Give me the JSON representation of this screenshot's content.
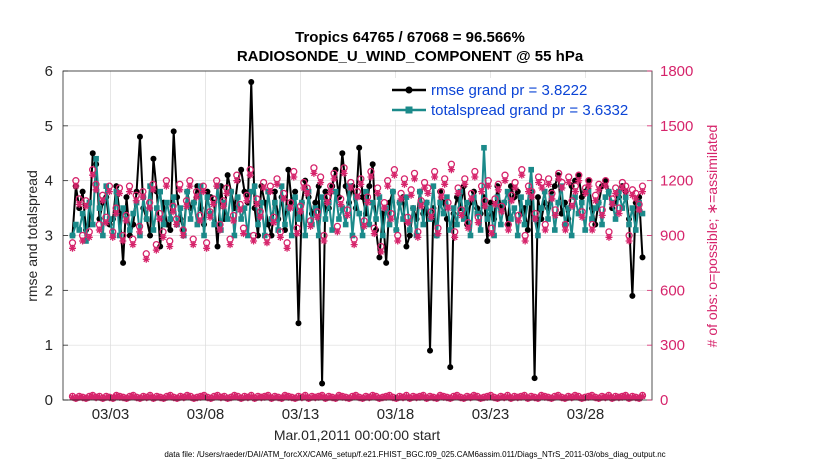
{
  "chart_data": {
    "type": "line",
    "title_line1": "Tropics 64765 / 67068 = 96.566%",
    "title_line2": "RADIOSONDE_U_WIND_COMPONENT @ 55 hPa",
    "xlabel": "Mar.01,2011 00:00:00 start",
    "ylabel_left": "rmse and totalspread",
    "ylabel_right": "# of obs: o=possible; ∗=assimilated",
    "footer": "data file: /Users/raeder/DAI/ATM_forcXX/CAM6_setup/f.e21.FHIST_BGC.f09_025.CAM6assim.011/Diags_NTrS_2011-03/obs_diag_output.nc",
    "xlim": [
      0.5,
      31.5
    ],
    "ylim_left": [
      0,
      6
    ],
    "ylim_right": [
      0,
      1800
    ],
    "x_ticks": [
      3,
      8,
      13,
      18,
      23,
      28
    ],
    "x_tick_labels": [
      "03/03",
      "03/08",
      "03/13",
      "03/18",
      "03/23",
      "03/28"
    ],
    "y_ticks_left": [
      0,
      1,
      2,
      3,
      4,
      5,
      6
    ],
    "y_tick_labels_left": [
      "0",
      "1",
      "2",
      "3",
      "4",
      "5",
      "6"
    ],
    "y_ticks_right": [
      0,
      300,
      600,
      900,
      1200,
      1500,
      1800
    ],
    "y_tick_labels_right": [
      "0",
      "300",
      "600",
      "900",
      "1200",
      "1500",
      "1800"
    ],
    "legend": [
      {
        "label": "rmse grand pr = 3.8222",
        "color": "#000000"
      },
      {
        "label": "totalspread grand pr = 3.6332",
        "color": "#1b8a8a"
      }
    ],
    "series": [
      {
        "name": "rmse",
        "color": "#000000",
        "axis": "left",
        "marker": "circle",
        "values": [
          3.0,
          3.9,
          3.5,
          3.8,
          3.1,
          3.2,
          4.5,
          4.3,
          3.3,
          3.6,
          3.7,
          3.2,
          3.3,
          3.9,
          3.4,
          2.5,
          3.7,
          3.0,
          3.2,
          3.8,
          4.8,
          3.5,
          3.3,
          3.0,
          4.4,
          3.8,
          2.8,
          3.6,
          3.2,
          3.1,
          4.9,
          3.7,
          3.3,
          3.1,
          3.8,
          3.5,
          3.6,
          3.9,
          3.5,
          3.2,
          3.8,
          3.7,
          3.6,
          2.8,
          3.9,
          3.3,
          4.1,
          3.8,
          3.5,
          4.0,
          4.2,
          3.8,
          3.6,
          5.8,
          3.5,
          3.0,
          3.9,
          3.6,
          3.2,
          3.0,
          3.8,
          3.3,
          3.7,
          3.1,
          4.2,
          3.6,
          3.8,
          1.4,
          3.6,
          4.0,
          3.7,
          3.4,
          3.6,
          3.9,
          0.3,
          3.8,
          3.5,
          3.9,
          4.2,
          3.7,
          4.5,
          3.9,
          3.6,
          3.9,
          3.5,
          4.6,
          3.7,
          3.4,
          3.9,
          4.3,
          3.1,
          2.6,
          3.4,
          2.5,
          3.6,
          3.8,
          3.1,
          3.6,
          3.7,
          2.8,
          3.0,
          3.5,
          3.3,
          3.8,
          3.4,
          3.6,
          0.9,
          3.5,
          3.0,
          3.8,
          3.6,
          3.3,
          0.6,
          3.4,
          3.7,
          3.5,
          3.9,
          3.2,
          3.6,
          3.8,
          3.5,
          3.4,
          3.7,
          2.9,
          3.6,
          3.3,
          3.9,
          3.5,
          3.6,
          3.2,
          3.9,
          3.7,
          3.8,
          3.4,
          3.5,
          3.1,
          3.8,
          0.4,
          3.7,
          3.3,
          3.6,
          3.5,
          3.8,
          3.9,
          4.1,
          3.4,
          3.6,
          3.3,
          3.9,
          4.0,
          4.1,
          3.7,
          3.8,
          4.0,
          3.5,
          3.2,
          3.6,
          3.9,
          4.0,
          3.8,
          3.5,
          3.6,
          3.7,
          3.9,
          3.8,
          3.3,
          1.9,
          3.6,
          3.7,
          2.6
        ]
      },
      {
        "name": "totalspread",
        "color": "#1b8a8a",
        "axis": "left",
        "marker": "square",
        "values": [
          3.0,
          3.2,
          3.1,
          3.4,
          2.9,
          3.6,
          3.2,
          4.4,
          3.5,
          3.0,
          3.9,
          3.3,
          3.0,
          3.8,
          3.0,
          3.5,
          3.3,
          3.1,
          3.4,
          3.6,
          3.0,
          3.7,
          3.3,
          3.9,
          3.1,
          3.5,
          3.8,
          3.2,
          3.6,
          3.3,
          3.7,
          3.2,
          3.5,
          3.0,
          3.8,
          3.3,
          3.6,
          3.2,
          3.9,
          3.0,
          3.7,
          3.4,
          3.2,
          3.9,
          3.1,
          3.6,
          3.3,
          3.8,
          3.0,
          3.7,
          3.3,
          3.5,
          3.0,
          3.8,
          3.9,
          3.2,
          3.6,
          3.0,
          3.8,
          3.3,
          3.6,
          3.1,
          3.9,
          3.2,
          3.5,
          3.0,
          3.7,
          3.3,
          3.6,
          3.0,
          3.8,
          3.2,
          3.5,
          3.0,
          3.7,
          3.3,
          3.6,
          3.1,
          3.8,
          3.3,
          3.5,
          3.2,
          3.9,
          3.0,
          3.7,
          3.4,
          3.0,
          3.8,
          3.2,
          3.6,
          3.3,
          3.7,
          3.0,
          3.5,
          3.2,
          3.8,
          3.1,
          3.6,
          3.3,
          3.7,
          3.1,
          3.5,
          3.0,
          3.8,
          3.2,
          3.6,
          3.3,
          3.9,
          3.0,
          3.6,
          3.4,
          3.7,
          3.1,
          3.5,
          3.2,
          3.8,
          3.3,
          3.6,
          3.0,
          3.7,
          3.4,
          3.1,
          4.6,
          3.3,
          3.5,
          3.0,
          3.7,
          3.2,
          3.6,
          3.8,
          3.3,
          3.5,
          3.0,
          3.7,
          3.2,
          3.6,
          4.2,
          3.3,
          3.0,
          3.5,
          3.8,
          3.3,
          3.7,
          3.1,
          3.6,
          3.9,
          3.2,
          3.5,
          3.0,
          3.7,
          3.4,
          3.6,
          3.1,
          3.8,
          3.3,
          3.5,
          3.6,
          3.2,
          3.7,
          3.8,
          3.6,
          3.3,
          3.8,
          3.5,
          3.7,
          3.2,
          3.5,
          3.1,
          3.6,
          3.4
        ]
      },
      {
        "name": "possible",
        "color": "#d6246b",
        "axis": "right",
        "marker": "o",
        "values": [
          860,
          1200,
          1100,
          900,
          1090,
          920,
          1260,
          1180,
          960,
          1120,
          1000,
          1170,
          920,
          1050,
          1160,
          900,
          1010,
          1170,
          880,
          1120,
          950,
          1140,
          800,
          1080,
          1180,
          850,
          1020,
          920,
          1200,
          870,
          1060,
          990,
          1180,
          930,
          1090,
          1200,
          880,
          1140,
          1010,
          1170,
          860,
          1030,
          1100,
          1200,
          960,
          1090,
          1160,
          880,
          1010,
          1230,
          1070,
          940,
          1120,
          1260,
          900,
          1100,
          1030,
          1190,
          890,
          1170,
          1000,
          1210,
          920,
          1130,
          860,
          1080,
          1250,
          940,
          1060,
          1190,
          1160,
          980,
          1270,
          1030,
          1220,
          900,
          1110,
          1170,
          1240,
          950,
          1100,
          1270,
          1040,
          1190,
          880,
          1140,
          1210,
          980,
          1110,
          1250,
          940,
          1160,
          840,
          1080,
          1200,
          1020,
          1260,
          900,
          1130,
          1210,
          1000,
          1150,
          1240,
          920,
          1090,
          1190,
          1160,
          1030,
          1250,
          940,
          1140,
          1210,
          1080,
          1290,
          920,
          1160,
          1040,
          1210,
          970,
          1130,
          1250,
          1000,
          1170,
          1090,
          1200,
          940,
          1100,
          1180,
          1060,
          1230,
          960,
          1120,
          1190,
          1010,
          1260,
          900,
          1170,
          1140,
          1020,
          1220,
          1190,
          960,
          1210,
          1130,
          1040,
          1240,
          1190,
          960,
          1220,
          1090,
          1170,
          1230,
          1030,
          1160,
          1200,
          960,
          1120,
          1180,
          1040,
          1200,
          920,
          1100,
          1160,
          1050,
          1190,
          1170,
          900,
          1150,
          1130,
          1070,
          1170
        ]
      },
      {
        "name": "assimilated",
        "color": "#d6246b",
        "axis": "right",
        "marker": "asterisk",
        "values": [
          830,
          1170,
          1070,
          870,
          1060,
          890,
          1230,
          1150,
          930,
          1090,
          970,
          1140,
          890,
          1020,
          1130,
          870,
          980,
          1140,
          850,
          1090,
          920,
          1110,
          770,
          1050,
          1150,
          820,
          990,
          890,
          1170,
          840,
          1030,
          960,
          1150,
          900,
          1060,
          1170,
          850,
          1110,
          980,
          1140,
          830,
          1000,
          1070,
          1170,
          930,
          1060,
          1130,
          850,
          980,
          1200,
          1040,
          910,
          1090,
          1230,
          870,
          1070,
          1000,
          1160,
          860,
          1140,
          970,
          1180,
          890,
          1100,
          830,
          1050,
          1220,
          910,
          1030,
          1160,
          1130,
          950,
          1240,
          1000,
          1190,
          870,
          1080,
          1140,
          1210,
          920,
          1070,
          1240,
          1010,
          1160,
          850,
          1110,
          1180,
          950,
          1080,
          1220,
          910,
          1130,
          810,
          1050,
          1170,
          990,
          1230,
          870,
          1100,
          1180,
          970,
          1120,
          1210,
          890,
          1060,
          1160,
          1130,
          1000,
          1220,
          910,
          1110,
          1180,
          1050,
          1260,
          890,
          1130,
          1010,
          1180,
          940,
          1100,
          1220,
          970,
          1140,
          1060,
          1170,
          910,
          1070,
          1150,
          1030,
          1200,
          930,
          1090,
          1160,
          980,
          1230,
          870,
          1140,
          1110,
          990,
          1190,
          1160,
          930,
          1180,
          1100,
          1010,
          1210,
          1160,
          930,
          1190,
          1060,
          1140,
          1200,
          1000,
          1130,
          1170,
          930,
          1090,
          1150,
          1010,
          1170,
          890,
          1070,
          1130,
          1020,
          1160,
          1140,
          870,
          1120,
          1100,
          1040,
          1140
        ]
      },
      {
        "name": "possible_low",
        "color": "#d6246b",
        "axis": "right",
        "marker": "o",
        "values": [
          20,
          10,
          20,
          15,
          10,
          20,
          25,
          15,
          20,
          10,
          20,
          15,
          10,
          25,
          20,
          15,
          10,
          20,
          25,
          15,
          10,
          20,
          15,
          25,
          10,
          20,
          15,
          10,
          20,
          25,
          15,
          10,
          20,
          15,
          25,
          20,
          10,
          15,
          20,
          25,
          15,
          10,
          20,
          25,
          15,
          20,
          10,
          15,
          25,
          20,
          10,
          20,
          15,
          25,
          10,
          20,
          15,
          20,
          25,
          10,
          20,
          15,
          10,
          25,
          20,
          15,
          10,
          20,
          15,
          25,
          10,
          20,
          15,
          20,
          25,
          10,
          20,
          15,
          10,
          25,
          20,
          15,
          10,
          20,
          25,
          15,
          10,
          20,
          15,
          25,
          20,
          10,
          15,
          20,
          25,
          15,
          10,
          20,
          15,
          25,
          10,
          20,
          15,
          20,
          25,
          10,
          20,
          15,
          10,
          25,
          20,
          15,
          10,
          20,
          25,
          15,
          10,
          20,
          15,
          25,
          20,
          10,
          15,
          20,
          25,
          15,
          10,
          20,
          15,
          25,
          10,
          20,
          15,
          20,
          25,
          10,
          20,
          15,
          10,
          25,
          20,
          15,
          10,
          20,
          25,
          15,
          10,
          20,
          15,
          25,
          20,
          10,
          15,
          20,
          25,
          15,
          10,
          20,
          15,
          25,
          10,
          20,
          15,
          20,
          25,
          10,
          20,
          15,
          10,
          25
        ]
      },
      {
        "name": "assimilated_low",
        "color": "#d6246b",
        "axis": "right",
        "marker": "asterisk",
        "values": [
          15,
          8,
          15,
          12,
          8,
          15,
          20,
          12,
          15,
          8,
          15,
          12,
          8,
          20,
          15,
          12,
          8,
          15,
          20,
          12,
          8,
          15,
          12,
          20,
          8,
          15,
          12,
          8,
          15,
          20,
          12,
          8,
          15,
          12,
          20,
          15,
          8,
          12,
          15,
          20,
          12,
          8,
          15,
          20,
          12,
          15,
          8,
          12,
          20,
          15,
          8,
          15,
          12,
          20,
          8,
          15,
          12,
          15,
          20,
          8,
          15,
          12,
          8,
          20,
          15,
          12,
          8,
          15,
          12,
          20,
          8,
          15,
          12,
          15,
          20,
          8,
          15,
          12,
          8,
          20,
          15,
          12,
          8,
          15,
          20,
          12,
          8,
          15,
          12,
          20,
          15,
          8,
          12,
          15,
          20,
          12,
          8,
          15,
          12,
          20,
          8,
          15,
          12,
          15,
          20,
          8,
          15,
          12,
          8,
          20,
          15,
          12,
          8,
          15,
          20,
          12,
          8,
          15,
          12,
          20,
          15,
          8,
          12,
          15,
          20,
          12,
          8,
          15,
          12,
          20,
          8,
          15,
          12,
          15,
          20,
          8,
          15,
          12,
          8,
          20,
          15,
          12,
          8,
          15,
          20,
          12,
          8,
          15,
          12,
          20,
          15,
          8,
          12,
          15,
          20,
          12,
          8,
          15,
          12,
          20,
          8,
          15,
          12,
          15,
          20,
          8,
          15,
          12,
          8,
          20
        ]
      }
    ]
  }
}
